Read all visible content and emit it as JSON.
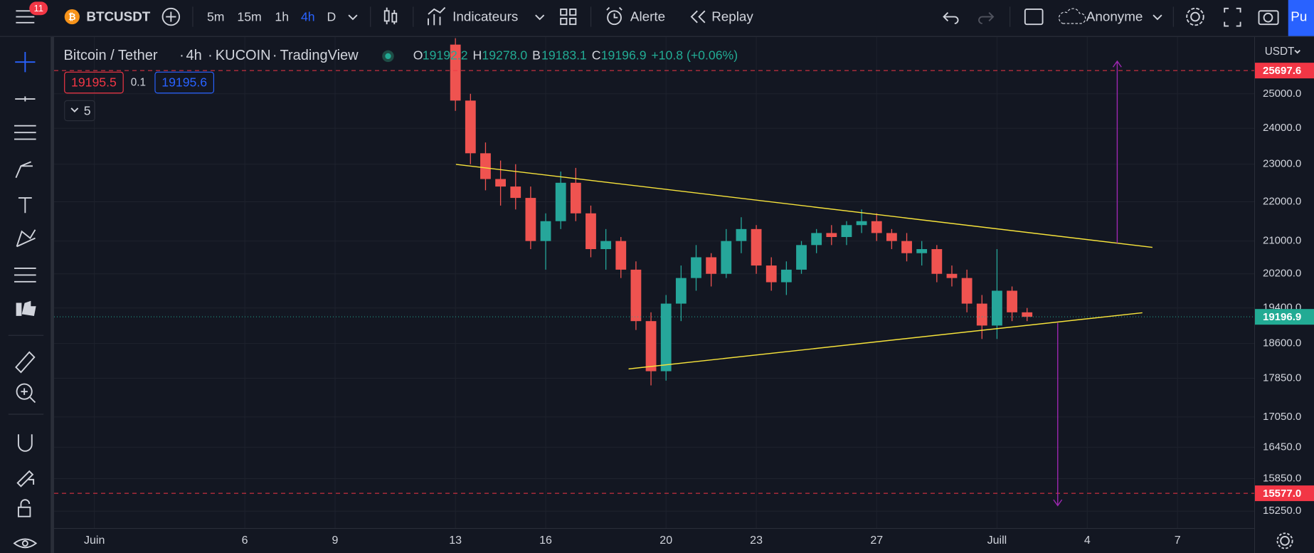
{
  "toolbar": {
    "notifications": "11",
    "symbol": "BTCUSDT",
    "intervals": [
      "5m",
      "15m",
      "1h",
      "4h",
      "D"
    ],
    "indicators": "Indicateurs",
    "alert": "Alerte",
    "replay": "Replay",
    "account": "Anonyme",
    "publish": "Pu"
  },
  "legend": {
    "pair": "Bitcoin / Tether",
    "interval": "4h",
    "exchange": "KUCOIN",
    "source": "TradingView",
    "ohlc": [
      {
        "key": "O",
        "value": "19192.2"
      },
      {
        "key": "H",
        "value": "19278.0"
      },
      {
        "key": "B",
        "value": "19183.1"
      },
      {
        "key": "C",
        "value": "19196.9"
      }
    ],
    "change": "+10.8 (+0.06%)",
    "bid": "19195.5",
    "spread": "0.1",
    "ask": "19195.6",
    "indicator_count": "5"
  },
  "chart_data": {
    "type": "candlestick",
    "currency": "USDT",
    "log": true,
    "up_color": "#26a69a",
    "down_color": "#ef5350",
    "x": [
      12,
      12.5,
      13,
      13.5,
      14,
      14.5,
      15,
      15.5,
      16,
      16.5,
      17,
      17.5,
      18,
      18.5,
      19,
      19.5,
      20,
      20.5,
      21,
      21.5,
      22,
      22.5,
      23,
      23.5,
      24,
      24.5,
      25,
      25.5,
      26,
      26.5,
      27,
      27.5,
      28,
      28.5,
      29,
      29.5,
      30,
      30.5,
      31
    ],
    "open": [
      26500,
      24800,
      23300,
      22600,
      22400,
      22100,
      21000,
      21500,
      22500,
      21700,
      20800,
      21000,
      20300,
      19100,
      18000,
      19500,
      20100,
      20600,
      20200,
      21000,
      21300,
      20400,
      20000,
      20300,
      20900,
      21200,
      21100,
      21400,
      21500,
      21200,
      21000,
      20700,
      20800,
      20200,
      20100,
      19500,
      19000,
      19800,
      19300
    ],
    "high": [
      26700,
      25000,
      23600,
      23100,
      23000,
      22400,
      21700,
      22800,
      22900,
      21900,
      21300,
      21100,
      20500,
      19300,
      19700,
      20400,
      20900,
      20700,
      21300,
      21600,
      21400,
      20600,
      20500,
      21000,
      21300,
      21400,
      21500,
      21800,
      21700,
      21300,
      21200,
      21000,
      20900,
      20400,
      20300,
      19700,
      20800,
      19900,
      19400
    ],
    "low": [
      24500,
      23000,
      22300,
      21900,
      21800,
      20800,
      20300,
      21300,
      21500,
      20600,
      20300,
      20100,
      18900,
      17700,
      17800,
      19100,
      19800,
      19900,
      20100,
      20700,
      20200,
      19800,
      19700,
      20200,
      20700,
      20900,
      20900,
      21200,
      21000,
      20800,
      20500,
      20400,
      20000,
      19900,
      19300,
      18700,
      18700,
      19100,
      19100
    ],
    "close": [
      24800,
      23300,
      22600,
      22400,
      22100,
      21000,
      21500,
      22500,
      21700,
      20800,
      21000,
      20300,
      19100,
      18000,
      19500,
      20100,
      20600,
      20200,
      21000,
      21300,
      20400,
      20000,
      20300,
      20900,
      21200,
      21100,
      21400,
      21500,
      21200,
      21000,
      20700,
      20800,
      20200,
      20100,
      19500,
      19000,
      19800,
      19300,
      19197
    ],
    "xlim": [
      -1.34,
      38.55
    ],
    "ylim": [
      14948,
      26582
    ],
    "xticks": [
      {
        "value": 0,
        "label": "Juin"
      },
      {
        "value": 5,
        "label": "6"
      },
      {
        "value": 8,
        "label": "9"
      },
      {
        "value": 12,
        "label": "13"
      },
      {
        "value": 15,
        "label": "16"
      },
      {
        "value": 19,
        "label": "20"
      },
      {
        "value": 22,
        "label": "23"
      },
      {
        "value": 26,
        "label": "27"
      },
      {
        "value": 30,
        "label": "Juill"
      },
      {
        "value": 33,
        "label": "4"
      },
      {
        "value": 36,
        "label": "7"
      }
    ],
    "yticks": [
      {
        "value": 25000,
        "label": "25000.0"
      },
      {
        "value": 24000,
        "label": "24000.0"
      },
      {
        "value": 23000,
        "label": "23000.0"
      },
      {
        "value": 22000,
        "label": "22000.0"
      },
      {
        "value": 21000,
        "label": "21000.0"
      },
      {
        "value": 20200,
        "label": "20200.0"
      },
      {
        "value": 19400,
        "label": "19400.0"
      },
      {
        "value": 18600,
        "label": "18600.0"
      },
      {
        "value": 17850,
        "label": "17850.0"
      },
      {
        "value": 17050,
        "label": "17050.0"
      },
      {
        "value": 16450,
        "label": "16450.0"
      },
      {
        "value": 15850,
        "label": "15850.0"
      },
      {
        "value": 15250,
        "label": "15250.0"
      }
    ],
    "levels": [
      {
        "value": 25697.6,
        "label": "25697.6",
        "color": "#f23645"
      },
      {
        "value": 15577,
        "label": "15577.0",
        "color": "#f23645"
      }
    ],
    "last_price": {
      "value": 19196.9,
      "label": "19196.9",
      "color": "#22ab94"
    }
  }
}
